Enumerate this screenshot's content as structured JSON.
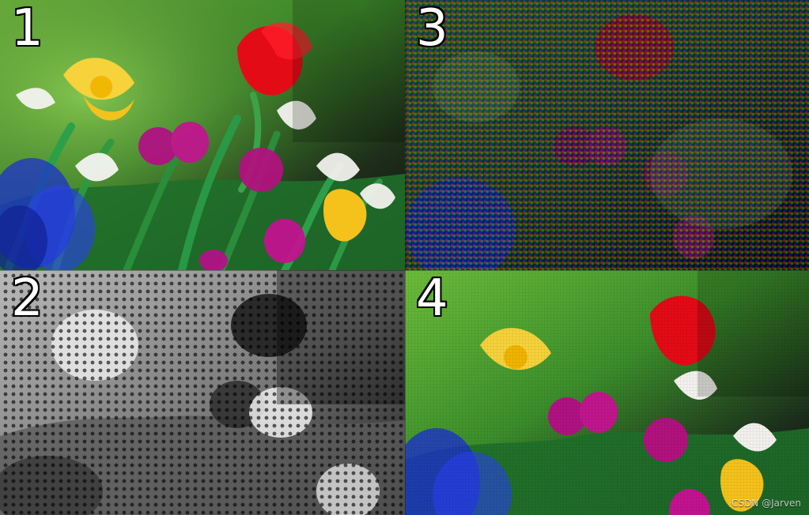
{
  "panels": [
    {
      "number_label": "1"
    },
    {
      "number_label": "2"
    },
    {
      "number_label": "3"
    },
    {
      "number_label": "4"
    }
  ],
  "watermark": {
    "text": "CSDN @Jarven"
  },
  "colors": {
    "tulip_red": "#e00d12",
    "tulip_magenta": "#b0127a",
    "daffodil_yellow": "#f7d22c",
    "tulip_yellow": "#f6c318",
    "grape_hyacinth_blue": "#1d2ed2",
    "foliage_green": "#2b9b3b"
  }
}
